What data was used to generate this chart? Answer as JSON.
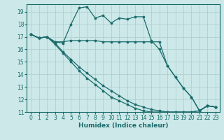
{
  "title": "",
  "xlabel": "Humidex (Indice chaleur)",
  "bg_color": "#cce8e8",
  "grid_color": "#aacccc",
  "line_color": "#1a6b6b",
  "xlim": [
    -0.5,
    23.5
  ],
  "ylim": [
    11,
    19.6
  ],
  "xticks": [
    0,
    1,
    2,
    3,
    4,
    5,
    6,
    7,
    8,
    9,
    10,
    11,
    12,
    13,
    14,
    15,
    16,
    17,
    18,
    19,
    20,
    21,
    22,
    23
  ],
  "yticks": [
    11,
    12,
    13,
    14,
    15,
    16,
    17,
    18,
    19
  ],
  "line1_x": [
    0,
    1,
    2,
    3,
    4,
    5,
    6,
    7,
    8,
    9,
    10,
    11,
    12,
    13,
    14,
    15,
    16,
    17,
    18,
    19,
    20,
    21,
    22,
    23
  ],
  "line1_y": [
    17.2,
    16.9,
    17.0,
    16.6,
    16.5,
    18.0,
    19.3,
    19.4,
    18.5,
    18.7,
    18.1,
    18.5,
    18.4,
    18.6,
    18.6,
    16.7,
    16.0,
    14.7,
    13.8,
    12.9,
    12.2,
    11.1,
    11.5,
    11.4
  ],
  "line2_x": [
    0,
    1,
    2,
    3,
    4,
    5,
    6,
    7,
    8,
    9,
    10,
    11,
    12,
    13,
    14,
    15,
    16,
    17,
    18,
    19,
    20,
    21,
    22,
    23
  ],
  "line2_y": [
    17.2,
    16.9,
    17.0,
    16.6,
    16.6,
    16.7,
    16.7,
    16.7,
    16.7,
    16.6,
    16.6,
    16.6,
    16.6,
    16.6,
    16.6,
    16.6,
    16.6,
    14.7,
    13.8,
    12.9,
    12.2,
    11.1,
    11.5,
    11.4
  ],
  "line3_x": [
    0,
    1,
    2,
    3,
    4,
    5,
    6,
    7,
    8,
    9,
    10,
    11,
    12,
    13,
    14,
    15,
    16,
    17,
    18,
    19,
    20,
    21,
    22,
    23
  ],
  "line3_y": [
    17.2,
    16.9,
    17.0,
    16.5,
    15.8,
    15.2,
    14.6,
    14.1,
    13.6,
    13.1,
    12.7,
    12.3,
    11.9,
    11.6,
    11.4,
    11.2,
    11.1,
    11.0,
    11.0,
    11.0,
    11.0,
    11.1,
    11.5,
    11.4
  ],
  "line4_x": [
    0,
    1,
    2,
    3,
    4,
    5,
    6,
    7,
    8,
    9,
    10,
    11,
    12,
    13,
    14,
    15,
    16,
    17,
    18,
    19,
    20,
    21,
    22,
    23
  ],
  "line4_y": [
    17.2,
    16.9,
    17.0,
    16.4,
    15.7,
    15.0,
    14.3,
    13.7,
    13.2,
    12.7,
    12.2,
    11.9,
    11.6,
    11.3,
    11.1,
    11.0,
    11.0,
    11.0,
    11.0,
    11.0,
    11.0,
    11.1,
    11.5,
    11.4
  ],
  "tick_fontsize": 5.5,
  "xlabel_fontsize": 6.5,
  "marker_size": 2.2,
  "line_width": 0.9
}
